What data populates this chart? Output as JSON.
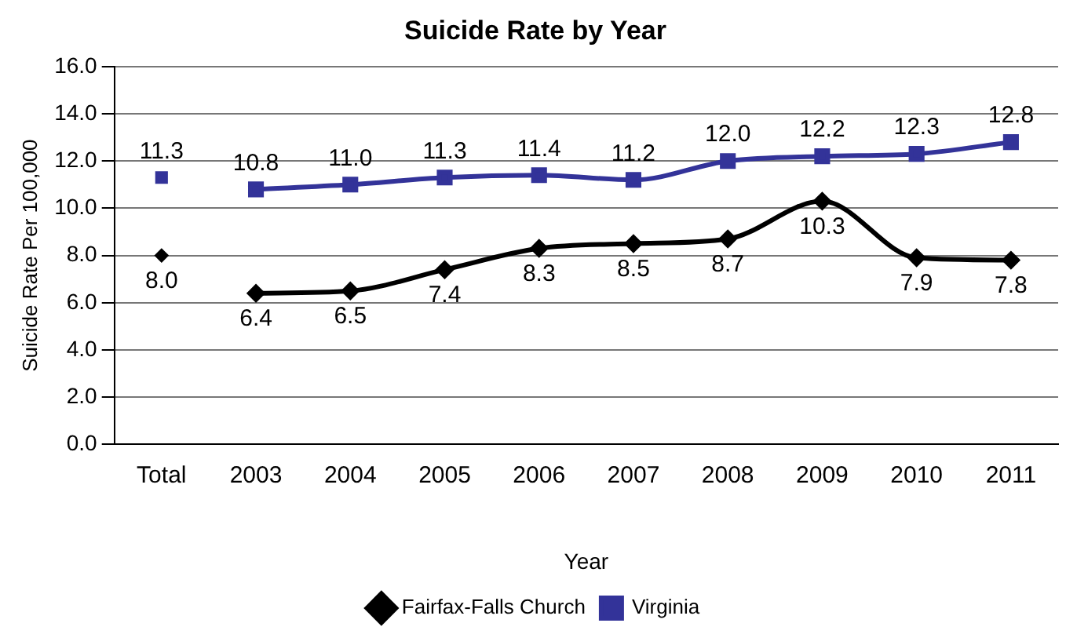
{
  "chart_data": {
    "type": "line",
    "title": "Suicide Rate by Year",
    "xlabel": "Year",
    "ylabel": "Suicide Rate Per 100,000",
    "categories": [
      "Total",
      "2003",
      "2004",
      "2005",
      "2006",
      "2007",
      "2008",
      "2009",
      "2010",
      "2011"
    ],
    "series": [
      {
        "name": "Fairfax-Falls Church",
        "marker": "diamond",
        "color": "#000000",
        "values": [
          null,
          6.4,
          6.5,
          7.4,
          8.3,
          8.5,
          8.7,
          10.3,
          7.9,
          7.8
        ],
        "value_labels": [
          null,
          "6.4",
          "6.5",
          "7.4",
          "8.3",
          "8.5",
          "8.7",
          "10.3",
          "7.9",
          "7.8"
        ]
      },
      {
        "name": "Virginia",
        "marker": "square",
        "color": "#333399",
        "values": [
          null,
          10.8,
          11.0,
          11.3,
          11.4,
          11.2,
          12.0,
          12.2,
          12.3,
          12.8
        ],
        "value_labels": [
          null,
          "10.8",
          "11.0",
          "11.3",
          "11.4",
          "11.2",
          "12.0",
          "12.2",
          "12.3",
          "12.8"
        ]
      },
      {
        "type": "scatter",
        "marker": "diamond",
        "color": "#000000",
        "values": [
          8.0,
          null,
          null,
          null,
          null,
          null,
          null,
          null,
          null,
          null
        ],
        "value_labels": [
          "8.0",
          null,
          null,
          null,
          null,
          null,
          null,
          null,
          null,
          null
        ]
      },
      {
        "type": "scatter",
        "marker": "square",
        "color": "#333399",
        "values": [
          11.3,
          null,
          null,
          null,
          null,
          null,
          null,
          null,
          null,
          null
        ],
        "value_labels": [
          "11.3",
          null,
          null,
          null,
          null,
          null,
          null,
          null,
          null,
          null
        ]
      }
    ],
    "ylim": [
      0,
      16
    ],
    "yticks": [
      {
        "value": 0,
        "label": "0.0"
      },
      {
        "value": 2,
        "label": "2.0"
      },
      {
        "value": 4,
        "label": "4.0"
      },
      {
        "value": 6,
        "label": "6.0"
      },
      {
        "value": 8,
        "label": "8.0"
      },
      {
        "value": 10,
        "label": "10.0"
      },
      {
        "value": 12,
        "label": "12.0"
      },
      {
        "value": 14,
        "label": "14.0"
      },
      {
        "value": 16,
        "label": "16.0"
      }
    ],
    "grid": "y",
    "legend": "bottom"
  }
}
